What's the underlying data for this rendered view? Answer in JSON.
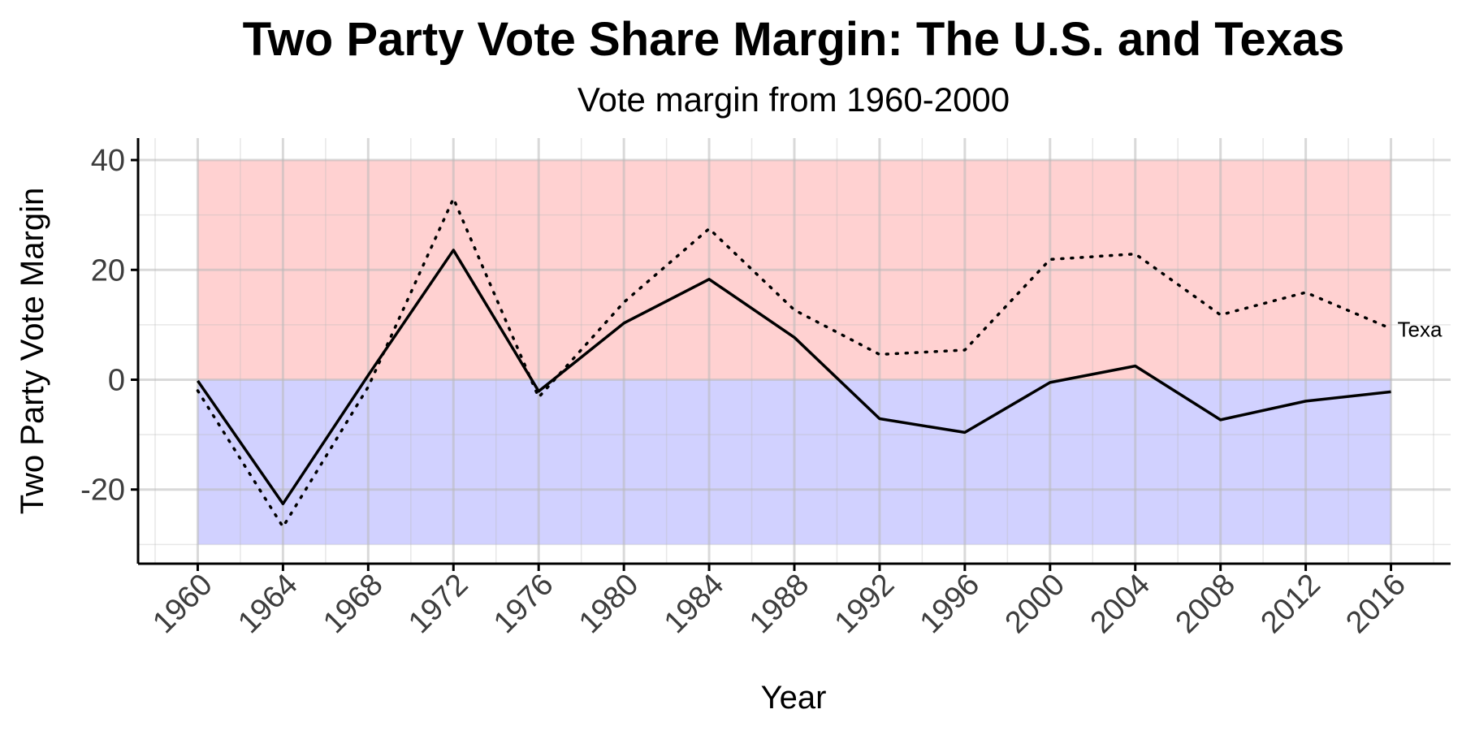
{
  "chart_data": {
    "type": "line",
    "title": "Two Party Vote Share Margin: The U.S. and Texas",
    "subtitle": "Vote margin from 1960-2000",
    "xlabel": "Year",
    "ylabel": "Two Party Vote Margin",
    "x": [
      1960,
      1964,
      1968,
      1972,
      1976,
      1980,
      1984,
      1988,
      1992,
      1996,
      2000,
      2004,
      2008,
      2012,
      2016
    ],
    "x_ticks": [
      "1960",
      "1964",
      "1968",
      "1972",
      "1976",
      "1980",
      "1984",
      "1988",
      "1992",
      "1996",
      "2000",
      "2004",
      "2008",
      "2012",
      "2016"
    ],
    "y_ticks": [
      "40",
      "20",
      "0",
      "-20"
    ],
    "xlim": [
      1957.2,
      2018.8
    ],
    "ylim": [
      -33.5,
      44
    ],
    "grid": true,
    "bands": [
      {
        "from": 0,
        "to": 40,
        "x_from": 1960,
        "x_to": 2016,
        "color": "#ffd1d1"
      },
      {
        "from": -30,
        "to": 0,
        "x_from": 1960,
        "x_to": 2016,
        "color": "#d1d1ff"
      }
    ],
    "series": [
      {
        "name": "",
        "style": "solid",
        "color": "#000000",
        "values": [
          -0.2,
          -22.6,
          0.8,
          23.6,
          -2.1,
          10.3,
          18.3,
          7.7,
          -7.1,
          -9.6,
          -0.5,
          2.5,
          -7.3,
          -3.9,
          -2.2
        ]
      },
      {
        "name": "Texa",
        "style": "dotted",
        "color": "#000000",
        "values": [
          -2.0,
          -26.8,
          -1.3,
          33.0,
          -3.2,
          14.1,
          27.5,
          12.7,
          4.6,
          5.4,
          21.9,
          22.9,
          11.8,
          15.9,
          9.3
        ]
      }
    ]
  }
}
